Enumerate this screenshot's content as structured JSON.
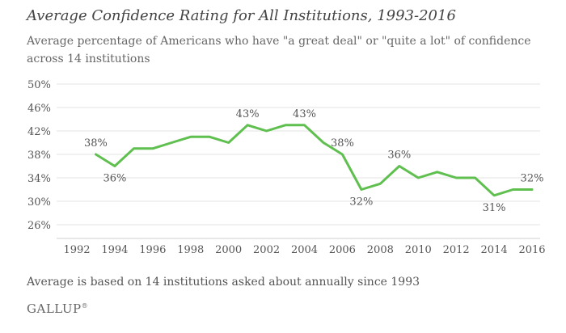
{
  "chart_data": {
    "type": "line",
    "title": "Average Confidence Rating for All Institutions, 1993-2016",
    "subtitle": "Average percentage of Americans who have \"a great deal\" or \"quite a lot\" of confidence across 14 institutions",
    "xlabel": "",
    "ylabel": "",
    "xlim": [
      1992,
      2016
    ],
    "ylim": [
      26,
      50
    ],
    "x_ticks": [
      1992,
      1994,
      1996,
      1998,
      2000,
      2002,
      2004,
      2006,
      2008,
      2010,
      2012,
      2014,
      2016
    ],
    "y_ticks": [
      "50%",
      "46%",
      "42%",
      "38%",
      "34%",
      "30%",
      "26%"
    ],
    "y_tick_values": [
      50,
      46,
      42,
      38,
      34,
      30,
      26
    ],
    "grid": true,
    "series": [
      {
        "color": "#5fbf4f",
        "points": [
          {
            "x": 1993,
            "y": 38
          },
          {
            "x": 1994,
            "y": 36
          },
          {
            "x": 1995,
            "y": 39
          },
          {
            "x": 1996,
            "y": 39
          },
          {
            "x": 1997,
            "y": 40
          },
          {
            "x": 1998,
            "y": 41
          },
          {
            "x": 1999,
            "y": 41
          },
          {
            "x": 2000,
            "y": 40
          },
          {
            "x": 2001,
            "y": 43
          },
          {
            "x": 2002,
            "y": 42
          },
          {
            "x": 2003,
            "y": 43
          },
          {
            "x": 2004,
            "y": 43
          },
          {
            "x": 2005,
            "y": 40
          },
          {
            "x": 2006,
            "y": 38
          },
          {
            "x": 2007,
            "y": 32
          },
          {
            "x": 2008,
            "y": 33
          },
          {
            "x": 2009,
            "y": 36
          },
          {
            "x": 2010,
            "y": 34
          },
          {
            "x": 2011,
            "y": 35
          },
          {
            "x": 2012,
            "y": 34
          },
          {
            "x": 2013,
            "y": 34
          },
          {
            "x": 2014,
            "y": 31
          },
          {
            "x": 2015,
            "y": 32
          },
          {
            "x": 2016,
            "y": 32
          }
        ]
      }
    ],
    "data_labels": [
      {
        "x": 1993,
        "y": 38,
        "text": "38%",
        "placement": "above"
      },
      {
        "x": 1994,
        "y": 36,
        "text": "36%",
        "placement": "below"
      },
      {
        "x": 2001,
        "y": 43,
        "text": "43%",
        "placement": "above"
      },
      {
        "x": 2004,
        "y": 43,
        "text": "43%",
        "placement": "above"
      },
      {
        "x": 2006,
        "y": 38,
        "text": "38%",
        "placement": "above"
      },
      {
        "x": 2007,
        "y": 32,
        "text": "32%",
        "placement": "below"
      },
      {
        "x": 2009,
        "y": 36,
        "text": "36%",
        "placement": "above"
      },
      {
        "x": 2014,
        "y": 31,
        "text": "31%",
        "placement": "below"
      },
      {
        "x": 2016,
        "y": 32,
        "text": "32%",
        "placement": "above"
      }
    ]
  },
  "footnote": "Average is based on 14 institutions asked about annually since 1993",
  "brand": "GALLUP",
  "brand_mark": "®"
}
